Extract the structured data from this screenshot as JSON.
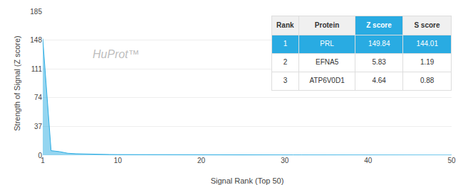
{
  "chart_data": {
    "type": "area",
    "xlabel": "Signal Rank (Top 50)",
    "ylabel": "Strength of Signal (Z score)",
    "annotations": [
      "HuProt™"
    ],
    "color": "#29ABE2",
    "grid": "y",
    "x": [
      1,
      2,
      3,
      4,
      5,
      6,
      7,
      8,
      9,
      10,
      11,
      12,
      13,
      14,
      15,
      16,
      17,
      18,
      19,
      20,
      21,
      22,
      23,
      24,
      25,
      26,
      27,
      28,
      29,
      30,
      31,
      32,
      33,
      34,
      35,
      36,
      37,
      38,
      39,
      40,
      41,
      42,
      43,
      44,
      45,
      46,
      47,
      48,
      49,
      50
    ],
    "values": [
      149.84,
      5.83,
      4.64,
      2.5,
      1.9,
      1.5,
      1.2,
      1.0,
      0.9,
      0.8,
      0.75,
      0.7,
      0.65,
      0.6,
      0.57,
      0.54,
      0.51,
      0.49,
      0.47,
      0.45,
      0.43,
      0.41,
      0.39,
      0.37,
      0.36,
      0.35,
      0.34,
      0.33,
      0.32,
      0.31,
      0.3,
      0.29,
      0.28,
      0.27,
      0.26,
      0.25,
      0.24,
      0.23,
      0.22,
      0.21,
      0.2,
      0.19,
      0.18,
      0.17,
      0.16,
      0.15,
      0.14,
      0.13,
      0.12,
      0.11
    ],
    "xlim": [
      1,
      50
    ],
    "xticks": [
      1,
      10,
      20,
      30,
      40,
      50
    ],
    "ylim": [
      0,
      185
    ],
    "yticks": [
      0,
      37,
      74,
      111,
      148,
      185
    ],
    "table": {
      "headers": [
        "Rank",
        "Protein",
        "Z score",
        "S score"
      ],
      "rows": [
        [
          "1",
          "PRL",
          "149.84",
          "144.01"
        ],
        [
          "2",
          "EFNA5",
          "5.83",
          "1.19"
        ],
        [
          "3",
          "ATP6V0D1",
          "4.64",
          "0.88"
        ]
      ]
    }
  }
}
